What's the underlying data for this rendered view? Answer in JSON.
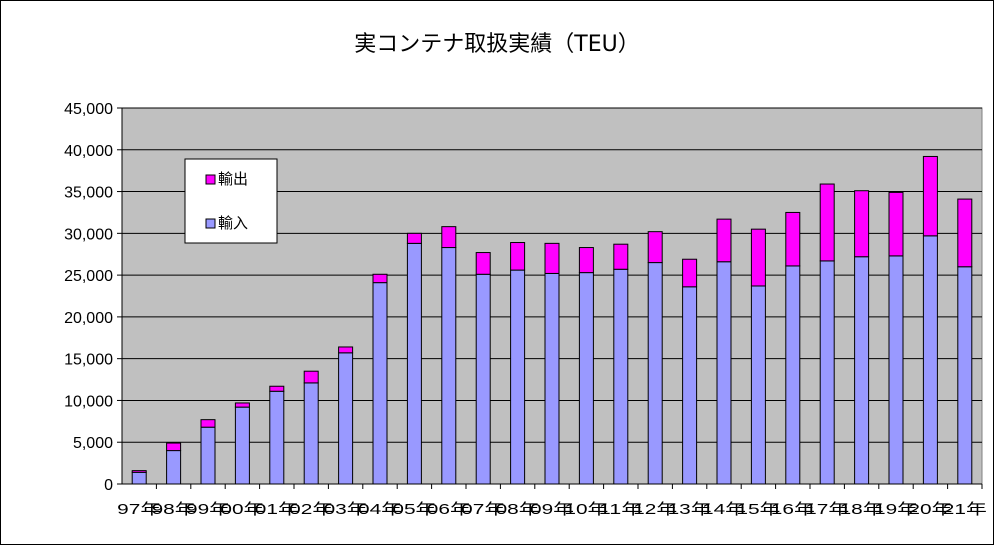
{
  "chart_data": {
    "type": "bar",
    "stacked": true,
    "title": "実コンテナ取扱実績（TEU）",
    "xlabel": "",
    "ylabel": "",
    "categories": [
      "97年",
      "98年",
      "99年",
      "00年",
      "01年",
      "02年",
      "03年",
      "04年",
      "05年",
      "06年",
      "07年",
      "08年",
      "09年",
      "10年",
      "11年",
      "12年",
      "13年",
      "14年",
      "15年",
      "16年",
      "17年",
      "18年",
      "19年",
      "20年",
      "21年"
    ],
    "series": [
      {
        "name": "輸入",
        "values": [
          1400,
          4000,
          6800,
          9200,
          11100,
          12100,
          15700,
          24100,
          28800,
          28300,
          25100,
          25600,
          25200,
          25300,
          25700,
          26500,
          23600,
          26600,
          23700,
          26100,
          26700,
          27200,
          27300,
          29700,
          26000
        ]
      },
      {
        "name": "輸出",
        "values": [
          200,
          900,
          900,
          500,
          600,
          1400,
          700,
          1000,
          1200,
          2500,
          2600,
          3300,
          3600,
          3000,
          3000,
          3700,
          3300,
          5100,
          6800,
          6400,
          9200,
          7900,
          7600,
          9500,
          8100
        ]
      }
    ],
    "yticks": [
      "0",
      "5,000",
      "10,000",
      "15,000",
      "20,000",
      "25,000",
      "30,000",
      "35,000",
      "40,000",
      "45,000"
    ],
    "ylim": [
      0,
      45000
    ],
    "grid": "horizontal",
    "legend": "left",
    "colors": {
      "輸入": "#9999ff",
      "輸出": "#ff00ff",
      "plot_bg": "#c0c0c0",
      "frame_bg": "#ffffff"
    }
  }
}
